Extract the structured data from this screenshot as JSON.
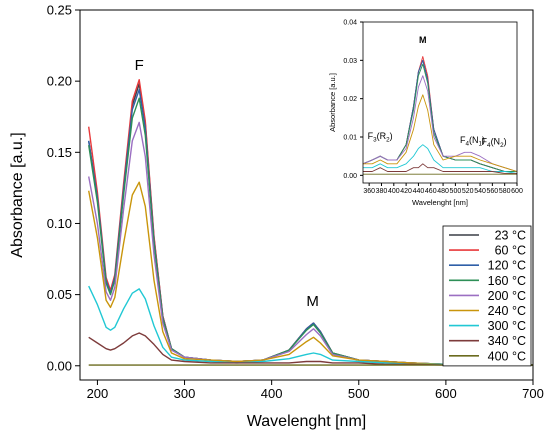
{
  "chart_data": [
    {
      "type": "line",
      "xlabel": "Wavelenght [nm]",
      "ylabel": "Absorbance [a.u.]",
      "xlim": [
        180,
        700
      ],
      "ylim": [
        -0.01,
        0.25
      ],
      "xticks": [
        "200",
        "300",
        "400",
        "500",
        "600",
        "700"
      ],
      "yticks": [
        "0.00",
        "0.05",
        "0.10",
        "0.15",
        "0.20",
        "0.25"
      ],
      "grid": false,
      "legend": "bottom-right",
      "annotations": [
        {
          "text": "F",
          "x": 248,
          "y": 0.208
        },
        {
          "text": "M",
          "x": 447,
          "y": 0.042
        }
      ],
      "x": [
        190,
        200,
        210,
        215,
        220,
        230,
        240,
        248,
        255,
        265,
        275,
        285,
        300,
        330,
        360,
        390,
        420,
        440,
        448,
        456,
        470,
        500,
        530,
        560,
        600,
        650,
        700
      ],
      "series": [
        {
          "name": "23 °C",
          "color": "#3a3f47",
          "values": [
            0.158,
            0.118,
            0.06,
            0.052,
            0.062,
            0.125,
            0.183,
            0.198,
            0.17,
            0.09,
            0.035,
            0.012,
            0.006,
            0.004,
            0.003,
            0.004,
            0.011,
            0.026,
            0.03,
            0.024,
            0.009,
            0.004,
            0.003,
            0.002,
            0.001,
            0.0005,
            0.0005
          ]
        },
        {
          "name": "60 °C",
          "color": "#e8393b",
          "values": [
            0.168,
            0.122,
            0.062,
            0.053,
            0.064,
            0.128,
            0.186,
            0.201,
            0.172,
            0.091,
            0.035,
            0.012,
            0.006,
            0.004,
            0.003,
            0.004,
            0.011,
            0.026,
            0.03,
            0.024,
            0.009,
            0.004,
            0.003,
            0.002,
            0.001,
            0.0005,
            0.0005
          ]
        },
        {
          "name": "120 °C",
          "color": "#2f5fa8",
          "values": [
            0.158,
            0.118,
            0.06,
            0.051,
            0.062,
            0.124,
            0.18,
            0.194,
            0.167,
            0.088,
            0.034,
            0.012,
            0.006,
            0.004,
            0.003,
            0.004,
            0.011,
            0.026,
            0.03,
            0.024,
            0.009,
            0.004,
            0.003,
            0.002,
            0.001,
            0.0005,
            0.0005
          ]
        },
        {
          "name": "160 °C",
          "color": "#2e8f57",
          "values": [
            0.155,
            0.115,
            0.058,
            0.05,
            0.06,
            0.12,
            0.174,
            0.188,
            0.162,
            0.086,
            0.033,
            0.012,
            0.006,
            0.004,
            0.003,
            0.004,
            0.011,
            0.025,
            0.029,
            0.023,
            0.009,
            0.004,
            0.003,
            0.002,
            0.001,
            0.0005,
            0.0005
          ]
        },
        {
          "name": "200 °C",
          "color": "#9b6fc2",
          "values": [
            0.133,
            0.1,
            0.052,
            0.046,
            0.055,
            0.11,
            0.158,
            0.171,
            0.147,
            0.078,
            0.03,
            0.011,
            0.006,
            0.004,
            0.003,
            0.004,
            0.01,
            0.022,
            0.026,
            0.021,
            0.008,
            0.004,
            0.003,
            0.002,
            0.001,
            0.0005,
            0.0005
          ]
        },
        {
          "name": "240 °C",
          "color": "#c9950b",
          "values": [
            0.123,
            0.09,
            0.046,
            0.041,
            0.048,
            0.086,
            0.12,
            0.129,
            0.112,
            0.06,
            0.024,
            0.009,
            0.005,
            0.004,
            0.003,
            0.004,
            0.008,
            0.017,
            0.02,
            0.016,
            0.007,
            0.004,
            0.003,
            0.002,
            0.001,
            0.0005,
            0.0005
          ]
        },
        {
          "name": "300 °C",
          "color": "#21c8d4",
          "values": [
            0.056,
            0.043,
            0.027,
            0.025,
            0.027,
            0.04,
            0.051,
            0.054,
            0.047,
            0.028,
            0.013,
            0.006,
            0.004,
            0.003,
            0.002,
            0.003,
            0.005,
            0.008,
            0.009,
            0.008,
            0.004,
            0.003,
            0.002,
            0.001,
            0.001,
            0.0005,
            0.0005
          ]
        },
        {
          "name": "340 °C",
          "color": "#7d3b3b",
          "values": [
            0.02,
            0.016,
            0.012,
            0.011,
            0.012,
            0.016,
            0.021,
            0.023,
            0.021,
            0.015,
            0.008,
            0.004,
            0.003,
            0.002,
            0.002,
            0.002,
            0.002,
            0.003,
            0.003,
            0.003,
            0.002,
            0.002,
            0.001,
            0.001,
            0.0005,
            0.0005,
            0.0005
          ]
        },
        {
          "name": "400 °C",
          "color": "#6b6b1f",
          "values": [
            0.0005,
            0.0005,
            0.0005,
            0.0005,
            0.0005,
            0.0005,
            0.0005,
            0.0005,
            0.0005,
            0.0005,
            0.0005,
            0.0005,
            0.0005,
            0.0005,
            0.0005,
            0.0005,
            0.0005,
            0.0005,
            0.0005,
            0.0005,
            0.0005,
            0.0005,
            0.0005,
            0.0005,
            0.0005,
            0.0005,
            0.0005
          ]
        }
      ]
    },
    {
      "type": "line",
      "xlabel": "Wavelenght [nm]",
      "ylabel": "Absorbance [a.u.]",
      "xlim": [
        350,
        600
      ],
      "ylim": [
        -0.002,
        0.04
      ],
      "xticks": [
        "360",
        "380",
        "400",
        "420",
        "440",
        "460",
        "480",
        "500",
        "520",
        "540",
        "560",
        "580",
        "600"
      ],
      "yticks": [
        "0.00",
        "0.01",
        "0.02",
        "0.03",
        "0.04"
      ],
      "grid": false,
      "annotations": [
        {
          "text": "M",
          "x": 447,
          "y": 0.0345
        },
        {
          "text": "F3(R2)",
          "x": 375,
          "y": 0.0095
        },
        {
          "text": "F4(N1)",
          "x": 525,
          "y": 0.0085
        },
        {
          "text": "F4(N2)",
          "x": 560,
          "y": 0.008
        }
      ],
      "x": [
        350,
        365,
        378,
        390,
        405,
        420,
        432,
        440,
        447,
        455,
        465,
        480,
        500,
        515,
        525,
        540,
        560,
        580,
        600
      ],
      "series": [
        {
          "name": "23 °C",
          "color": "#3a3f47",
          "values": [
            0.003,
            0.004,
            0.005,
            0.004,
            0.004,
            0.008,
            0.018,
            0.027,
            0.03,
            0.025,
            0.012,
            0.005,
            0.004,
            0.004,
            0.004,
            0.003,
            0.002,
            0.001,
            0.001
          ]
        },
        {
          "name": "60 °C",
          "color": "#e8393b",
          "values": [
            0.003,
            0.004,
            0.005,
            0.004,
            0.004,
            0.008,
            0.018,
            0.027,
            0.031,
            0.026,
            0.012,
            0.005,
            0.004,
            0.004,
            0.004,
            0.003,
            0.002,
            0.001,
            0.001
          ]
        },
        {
          "name": "120 °C",
          "color": "#2f5fa8",
          "values": [
            0.003,
            0.004,
            0.005,
            0.004,
            0.004,
            0.008,
            0.018,
            0.027,
            0.03,
            0.025,
            0.012,
            0.005,
            0.004,
            0.004,
            0.004,
            0.003,
            0.002,
            0.001,
            0.001
          ]
        },
        {
          "name": "160 °C",
          "color": "#2e8f57",
          "values": [
            0.003,
            0.004,
            0.005,
            0.004,
            0.004,
            0.008,
            0.017,
            0.026,
            0.029,
            0.024,
            0.011,
            0.005,
            0.004,
            0.004,
            0.004,
            0.003,
            0.002,
            0.001,
            0.001
          ]
        },
        {
          "name": "200 °C",
          "color": "#9b6fc2",
          "values": [
            0.003,
            0.004,
            0.005,
            0.004,
            0.004,
            0.007,
            0.015,
            0.023,
            0.026,
            0.022,
            0.01,
            0.005,
            0.005,
            0.006,
            0.006,
            0.005,
            0.003,
            0.002,
            0.001
          ]
        },
        {
          "name": "240 °C",
          "color": "#c9950b",
          "values": [
            0.003,
            0.003,
            0.004,
            0.003,
            0.003,
            0.006,
            0.012,
            0.018,
            0.021,
            0.017,
            0.008,
            0.004,
            0.005,
            0.005,
            0.005,
            0.004,
            0.003,
            0.002,
            0.001
          ]
        },
        {
          "name": "300 °C",
          "color": "#21c8d4",
          "values": [
            0.002,
            0.002,
            0.003,
            0.002,
            0.002,
            0.003,
            0.005,
            0.007,
            0.008,
            0.007,
            0.004,
            0.002,
            0.002,
            0.002,
            0.002,
            0.002,
            0.001,
            0.001,
            0.0005
          ]
        },
        {
          "name": "340 °C",
          "color": "#7d3b3b",
          "values": [
            0.001,
            0.001,
            0.002,
            0.001,
            0.001,
            0.001,
            0.002,
            0.002,
            0.003,
            0.002,
            0.002,
            0.001,
            0.001,
            0.001,
            0.001,
            0.001,
            0.001,
            0.0005,
            0.0005
          ]
        },
        {
          "name": "400 °C",
          "color": "#6b6b1f",
          "values": [
            0.0003,
            0.0003,
            0.0003,
            0.0003,
            0.0003,
            0.0003,
            0.0003,
            0.0003,
            0.0003,
            0.0003,
            0.0003,
            0.0003,
            0.0003,
            0.0003,
            0.0003,
            0.0003,
            0.0003,
            0.0003,
            0.0003
          ]
        }
      ]
    }
  ]
}
